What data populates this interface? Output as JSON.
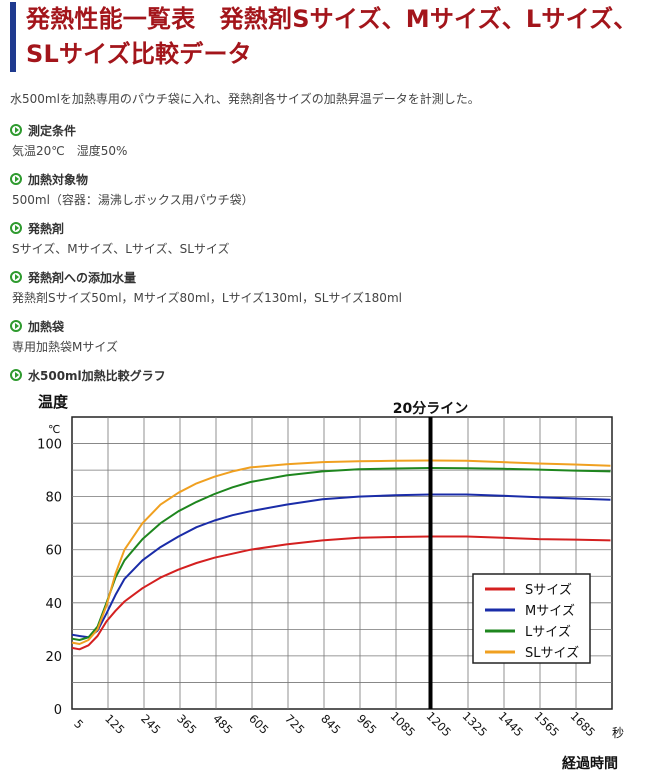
{
  "header": {
    "title": "発熱性能一覧表　発熱剤Sサイズ、Mサイズ、Lサイズ、SLサイズ比較データ"
  },
  "intro": "水500mlを加熱専用のパウチ袋に入れ、発熱剤各サイズの加熱昇温データを計測した。",
  "sections": [
    {
      "label": "測定条件",
      "value": "気温20℃　湿度50%"
    },
    {
      "label": "加熱対象物",
      "value": "500ml（容器：湯沸しボックス用パウチ袋）"
    },
    {
      "label": "発熱剤",
      "value": "Sサイズ、Mサイズ、Lサイズ、SLサイズ"
    },
    {
      "label": "発熱剤への添加水量",
      "value": "発熱剤Sサイズ50ml，Mサイズ80ml，Lサイズ130ml，SLサイズ180ml"
    },
    {
      "label": "加熱袋",
      "value": "専用加熱袋Mサイズ"
    },
    {
      "label": "水500ml加熱比較グラフ",
      "value": ""
    }
  ],
  "chart_data": {
    "type": "line",
    "ylabel": "温度",
    "yunit": "℃",
    "xlabel": "経過時間",
    "xunit": "秒",
    "ylim": [
      0,
      110
    ],
    "xlim": [
      5,
      1805
    ],
    "yticks": [
      0,
      20,
      40,
      60,
      80,
      100
    ],
    "xticks": [
      5,
      125,
      245,
      365,
      485,
      605,
      725,
      845,
      965,
      1085,
      1205,
      1325,
      1445,
      1565,
      1685
    ],
    "grid": true,
    "legend_position": "bottom-right",
    "annotation": {
      "label": "20分ライン",
      "x": 1200
    },
    "x": [
      5,
      30,
      60,
      90,
      120,
      150,
      180,
      240,
      300,
      360,
      420,
      480,
      540,
      600,
      720,
      840,
      960,
      1080,
      1200,
      1320,
      1440,
      1560,
      1680,
      1800
    ],
    "series": [
      {
        "name": "Sサイズ",
        "color": "#d42020",
        "values": [
          23,
          22.5,
          24,
          27.5,
          33,
          37,
          40.5,
          45.5,
          49.5,
          52.5,
          55,
          57,
          58.5,
          60,
          62,
          63.5,
          64.5,
          64.8,
          65,
          65,
          64.5,
          64,
          63.8,
          63.5
        ]
      },
      {
        "name": "Mサイズ",
        "color": "#1a2ca8",
        "values": [
          28,
          27.5,
          27,
          29.5,
          36,
          43,
          49,
          56,
          61,
          65,
          68.5,
          71,
          73,
          74.5,
          77,
          79,
          80,
          80.5,
          80.8,
          80.8,
          80.3,
          79.8,
          79.3,
          78.8
        ]
      },
      {
        "name": "Lサイズ",
        "color": "#1e861e",
        "values": [
          26.5,
          26,
          27,
          31,
          40,
          49.5,
          56,
          64,
          70,
          74.5,
          78,
          81,
          83.5,
          85.5,
          88,
          89.5,
          90.3,
          90.6,
          90.8,
          90.7,
          90.5,
          90.2,
          89.8,
          89.5
        ]
      },
      {
        "name": "SLサイズ",
        "color": "#f0a020",
        "values": [
          25,
          24.5,
          26,
          30,
          39,
          51,
          60,
          70,
          77,
          81.5,
          85,
          87.5,
          89.5,
          91,
          92.2,
          93,
          93.3,
          93.5,
          93.6,
          93.5,
          93,
          92.5,
          92.1,
          91.6
        ]
      }
    ]
  }
}
